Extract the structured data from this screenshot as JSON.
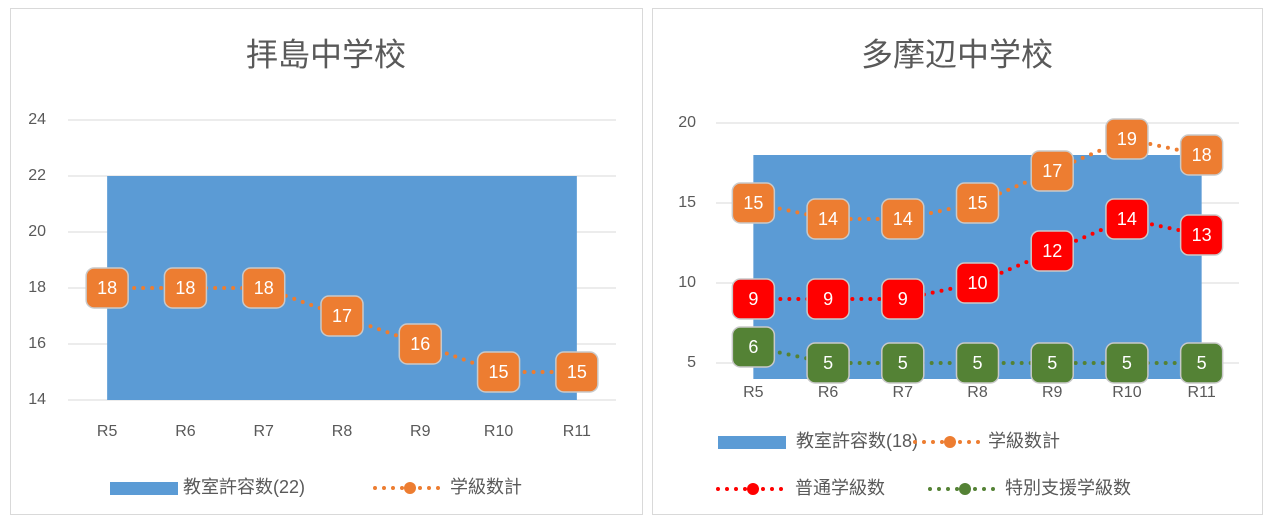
{
  "chart_data": [
    {
      "type": "line",
      "title": "拝島中学校",
      "categories": [
        "R5",
        "R6",
        "R7",
        "R8",
        "R9",
        "R10",
        "R11"
      ],
      "ylim": [
        14,
        24
      ],
      "yticks": [
        14,
        16,
        18,
        20,
        22,
        24
      ],
      "grid": true,
      "series": [
        {
          "name": "教室許容数(22)",
          "type": "area",
          "color": "#5b9bd5",
          "values": [
            22,
            22,
            22,
            22,
            22,
            22,
            22
          ]
        },
        {
          "name": "学級数計",
          "type": "line",
          "color": "#ed7d31",
          "values": [
            18,
            18,
            18,
            17,
            16,
            15,
            15
          ]
        }
      ]
    },
    {
      "type": "line",
      "title": "多摩辺中学校",
      "categories": [
        "R5",
        "R6",
        "R7",
        "R8",
        "R9",
        "R10",
        "R11"
      ],
      "ylim": [
        4,
        20
      ],
      "yticks": [
        5,
        10,
        15,
        20
      ],
      "grid": true,
      "series": [
        {
          "name": "教室許容数(18)",
          "type": "area",
          "color": "#5b9bd5",
          "values": [
            18,
            18,
            18,
            18,
            18,
            18,
            18
          ]
        },
        {
          "name": "学級数計",
          "type": "line",
          "color": "#ed7d31",
          "values": [
            15,
            14,
            14,
            15,
            17,
            19,
            18
          ]
        },
        {
          "name": "普通学級数",
          "type": "line",
          "color": "#ff0000",
          "values": [
            9,
            9,
            9,
            10,
            12,
            14,
            13
          ]
        },
        {
          "name": "特別支援学級数",
          "type": "line",
          "color": "#548235",
          "values": [
            6,
            5,
            5,
            5,
            5,
            5,
            5
          ]
        }
      ]
    }
  ]
}
